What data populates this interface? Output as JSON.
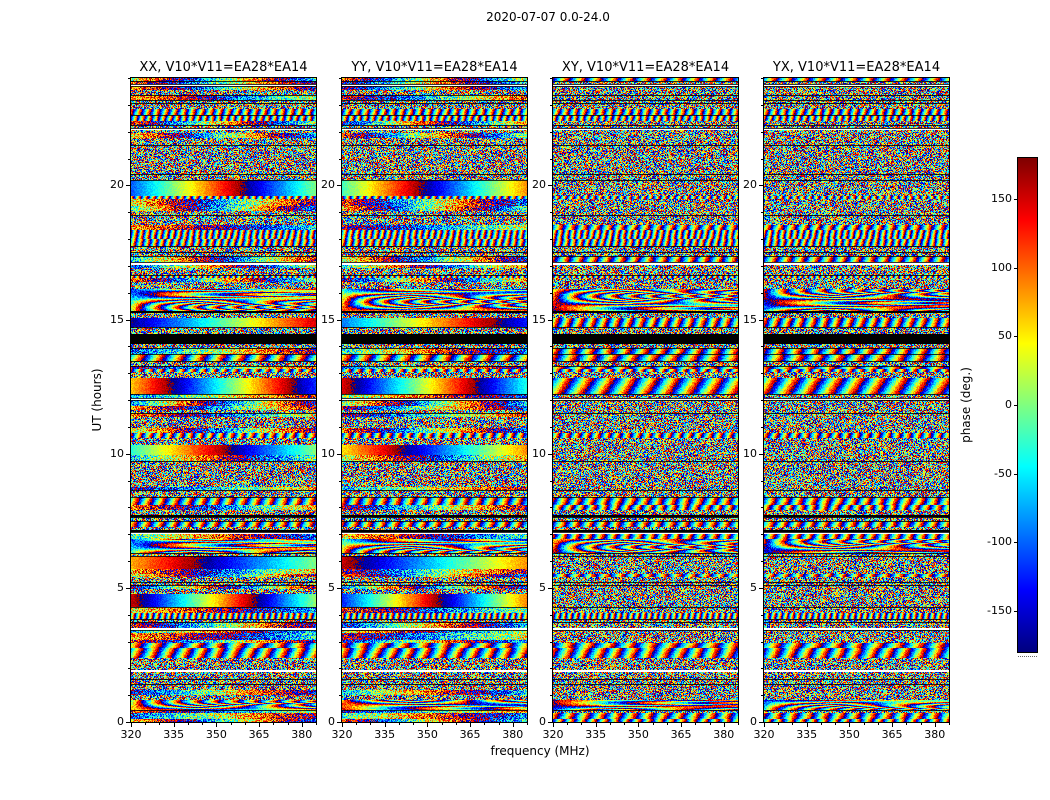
{
  "figure": {
    "title": "2020-07-07 0.0-24.0",
    "xlabel": "frequency (MHz)",
    "ylabel": "UT (hours)"
  },
  "chart_data": {
    "type": "heatmap",
    "description": "Four dynamic-spectrum (waterfall) panels of interferometric visibility phase vs frequency (x) and UT time (y) for baseline V10*V11=EA28*EA14, one per polarization product (XX, YY, XY, YX). Pixels are noise-like phases drawn from -180 to 180 deg with the jet colormap; coherent phase-ramp bands appear as smooth horizontal rainbow gradients (strongest in XX and YY, e.g. near UT 20.2, 16, 12.6, 6.3, 4.6), a solid black flagged band crosses all panels near UT 14.2, and occasional thin white flagged rows occur.",
    "panels": [
      {
        "pol": "XX",
        "title": "XX, V10*V11=EA28*EA14"
      },
      {
        "pol": "YY",
        "title": "YY, V10*V11=EA28*EA14"
      },
      {
        "pol": "XY",
        "title": "XY, V10*V11=EA28*EA14"
      },
      {
        "pol": "YX",
        "title": "YX, V10*V11=EA28*EA14"
      }
    ],
    "x_axis": {
      "label": "frequency (MHz)",
      "range": [
        320,
        385
      ],
      "major_ticks": [
        320,
        335,
        350,
        365,
        380
      ],
      "minor_tick_step": 5
    },
    "y_axis": {
      "label": "UT (hours)",
      "range": [
        0,
        24
      ],
      "major_ticks": [
        0,
        5,
        10,
        15,
        20
      ],
      "minor_tick_step": 1
    },
    "colorbar": {
      "label": "phase (deg.)",
      "colormap": "jet",
      "range": [
        -180,
        180
      ],
      "ticks": [
        150,
        100,
        50,
        0,
        -50,
        -100,
        -150
      ]
    },
    "grid": false,
    "legend": "none"
  }
}
